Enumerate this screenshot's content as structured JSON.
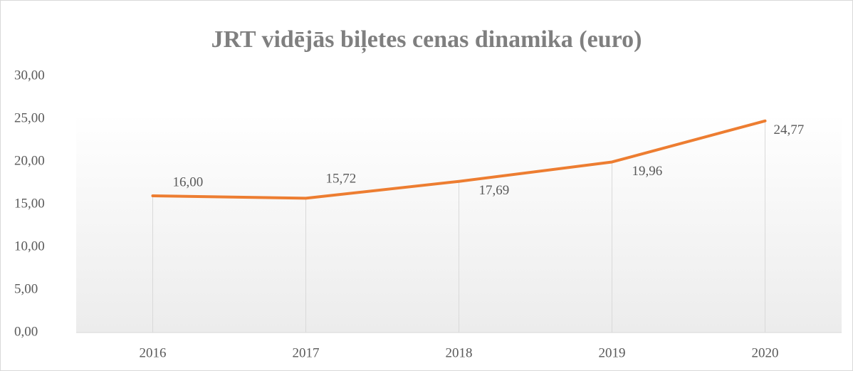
{
  "chart_data": {
    "type": "line",
    "title": "JRT vidējās biļetes cenas dinamika (euro)",
    "categories": [
      "2016",
      "2017",
      "2018",
      "2019",
      "2020"
    ],
    "series": [
      {
        "name": "JRT vidējās biļetes cena",
        "color": "#ed7d31",
        "values": [
          16.0,
          15.72,
          17.69,
          19.96,
          24.77
        ],
        "value_labels": [
          "16,00",
          "15,72",
          "17,69",
          "19,96",
          "24,77"
        ]
      }
    ],
    "ylim": [
      0,
      30
    ],
    "yticks": [
      {
        "value": 0,
        "label": "0,00"
      },
      {
        "value": 5,
        "label": "5,00"
      },
      {
        "value": 10,
        "label": "10,00"
      },
      {
        "value": 15,
        "label": "15,00"
      },
      {
        "value": 20,
        "label": "20,00"
      },
      {
        "value": 25,
        "label": "25,00"
      },
      {
        "value": 30,
        "label": "30,00"
      }
    ],
    "drop_lines": true
  }
}
